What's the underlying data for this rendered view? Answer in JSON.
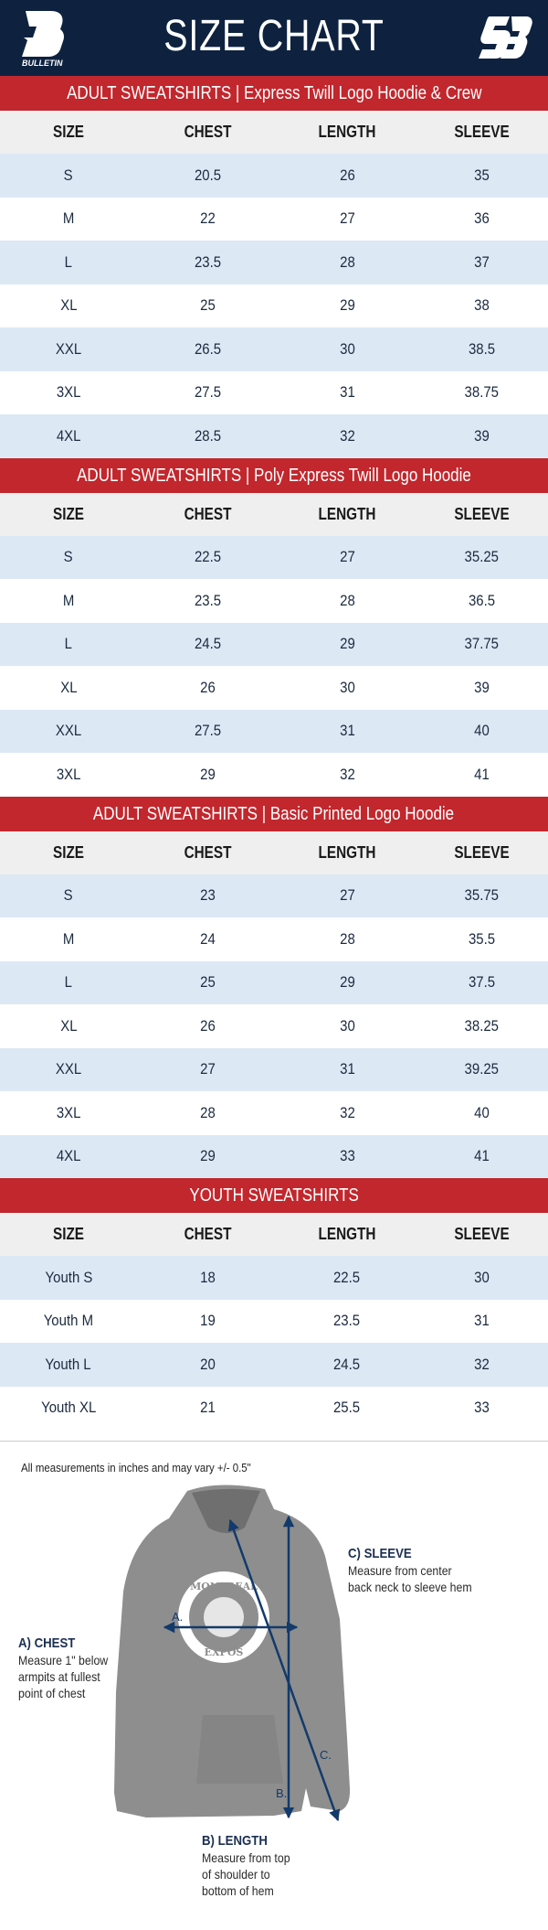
{
  "header": {
    "title": "SIZE CHART",
    "brand_left": "BULLETIN",
    "brand_right": "SB"
  },
  "columns": [
    "SIZE",
    "CHEST",
    "LENGTH",
    "SLEEVE"
  ],
  "sections": [
    {
      "title": "ADULT SWEATSHIRTS | Express Twill Logo Hoodie & Crew",
      "rows": [
        [
          "S",
          "20.5",
          "26",
          "35"
        ],
        [
          "M",
          "22",
          "27",
          "36"
        ],
        [
          "L",
          "23.5",
          "28",
          "37"
        ],
        [
          "XL",
          "25",
          "29",
          "38"
        ],
        [
          "XXL",
          "26.5",
          "30",
          "38.5"
        ],
        [
          "3XL",
          "27.5",
          "31",
          "38.75"
        ],
        [
          "4XL",
          "28.5",
          "32",
          "39"
        ]
      ]
    },
    {
      "title": "ADULT SWEATSHIRTS | Poly Express Twill Logo Hoodie",
      "rows": [
        [
          "S",
          "22.5",
          "27",
          "35.25"
        ],
        [
          "M",
          "23.5",
          "28",
          "36.5"
        ],
        [
          "L",
          "24.5",
          "29",
          "37.75"
        ],
        [
          "XL",
          "26",
          "30",
          "39"
        ],
        [
          "XXL",
          "27.5",
          "31",
          "40"
        ],
        [
          "3XL",
          "29",
          "32",
          "41"
        ]
      ]
    },
    {
      "title": "ADULT SWEATSHIRTS | Basic Printed Logo Hoodie",
      "rows": [
        [
          "S",
          "23",
          "27",
          "35.75"
        ],
        [
          "M",
          "24",
          "28",
          "35.5"
        ],
        [
          "L",
          "25",
          "29",
          "37.5"
        ],
        [
          "XL",
          "26",
          "30",
          "38.25"
        ],
        [
          "XXL",
          "27",
          "31",
          "39.25"
        ],
        [
          "3XL",
          "28",
          "32",
          "40"
        ],
        [
          "4XL",
          "29",
          "33",
          "41"
        ]
      ]
    },
    {
      "title": "YOUTH SWEATSHIRTS",
      "rows": [
        [
          "Youth S",
          "18",
          "22.5",
          "30"
        ],
        [
          "Youth M",
          "19",
          "23.5",
          "31"
        ],
        [
          "Youth L",
          "20",
          "24.5",
          "32"
        ],
        [
          "Youth XL",
          "21",
          "25.5",
          "33"
        ]
      ]
    }
  ],
  "diagram": {
    "note": "All measurements in inches and may vary +/- 0.5\"",
    "chest": {
      "title": "A) CHEST",
      "desc": [
        "Measure 1\" below",
        "armpits at fullest",
        "point of chest"
      ],
      "marker": "A."
    },
    "length": {
      "title": "B) LENGTH",
      "desc": [
        "Measure from top",
        "of shoulder to",
        "bottom of hem"
      ],
      "marker": "B."
    },
    "sleeve": {
      "title": "C) SLEEVE",
      "desc": [
        "Measure from center",
        "back neck to sleeve hem"
      ],
      "marker": "C."
    },
    "garment_logo": {
      "top": "MONTREAL",
      "bottom": "EXPOS"
    }
  },
  "colors": {
    "navy": "#0e2240",
    "red": "#c1272d",
    "row_alt": "#dde8f5",
    "head_row": "#efefef",
    "arrow": "#123a6b",
    "garment": "#8e8e8e"
  }
}
